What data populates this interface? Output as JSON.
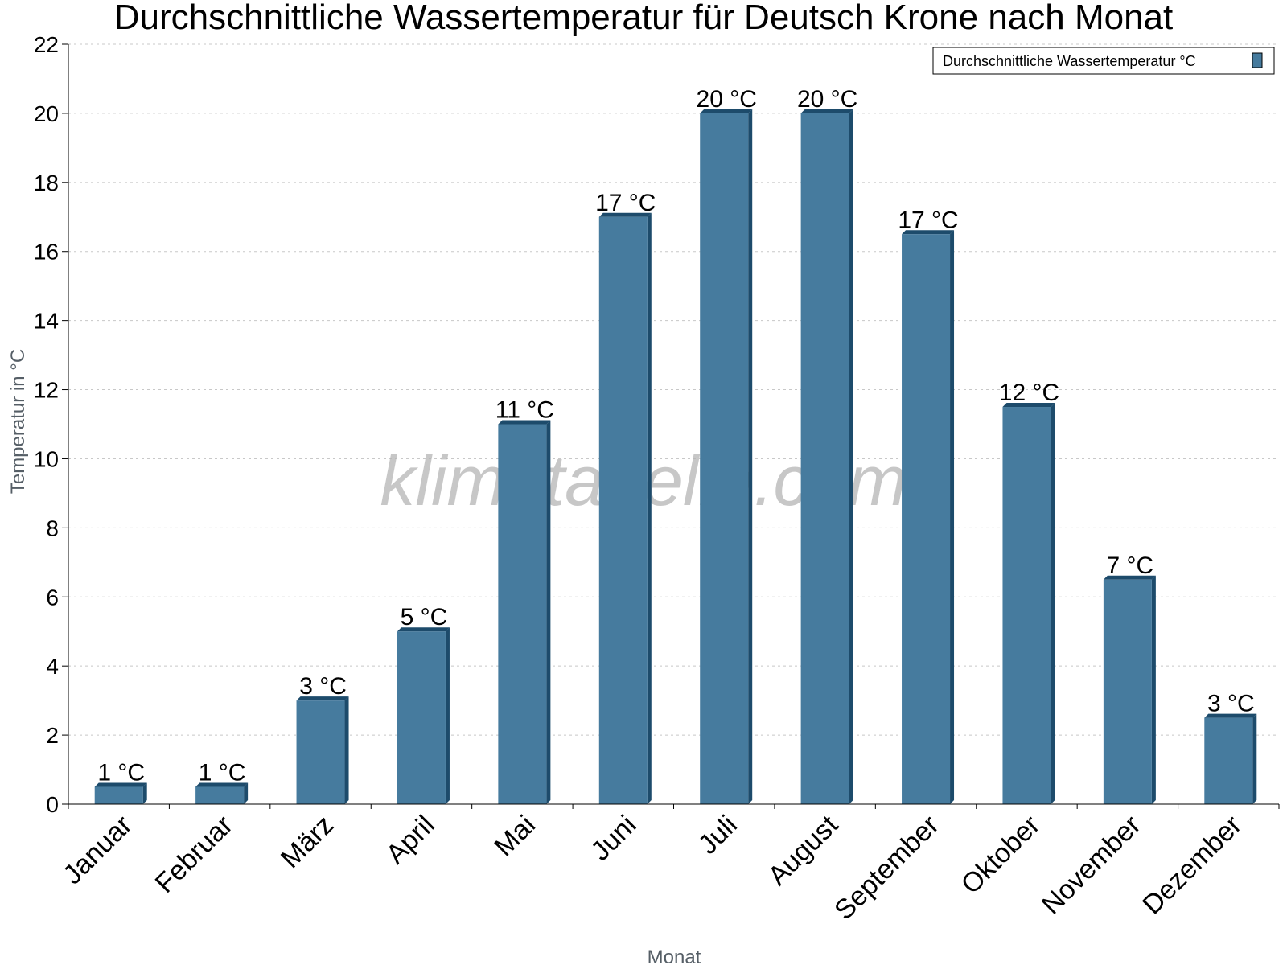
{
  "chart_data": {
    "type": "bar",
    "title": "Durchschnittliche Wassertemperatur für Deutsch Krone nach Monat",
    "xlabel": "Monat",
    "ylabel": "Temperatur in °C",
    "categories": [
      "Januar",
      "Februar",
      "März",
      "April",
      "Mai",
      "Juni",
      "Juli",
      "August",
      "September",
      "Oktober",
      "November",
      "Dezember"
    ],
    "series": [
      {
        "name": "Durchschnittliche Wassertemperatur °C",
        "values": [
          0.5,
          0.5,
          3,
          5,
          11,
          17,
          20,
          20,
          16.5,
          11.5,
          6.5,
          2.5
        ],
        "labels": [
          "1 °C",
          "1 °C",
          "3 °C",
          "5 °C",
          "11 °C",
          "17 °C",
          "20 °C",
          "20 °C",
          "17 °C",
          "12 °C",
          "7 °C",
          "3 °C"
        ]
      }
    ],
    "ylim": [
      0,
      22
    ],
    "yticks": [
      0,
      2,
      4,
      6,
      8,
      10,
      12,
      14,
      16,
      18,
      20,
      22
    ],
    "grid": true,
    "legend_position": "top-right",
    "watermark": "klimatabelle.com",
    "colors": {
      "bar": "#467b9e",
      "bar_dark": "#1d4b6b",
      "grid": "#c8c8c8",
      "axis_label": "#555e66"
    }
  }
}
